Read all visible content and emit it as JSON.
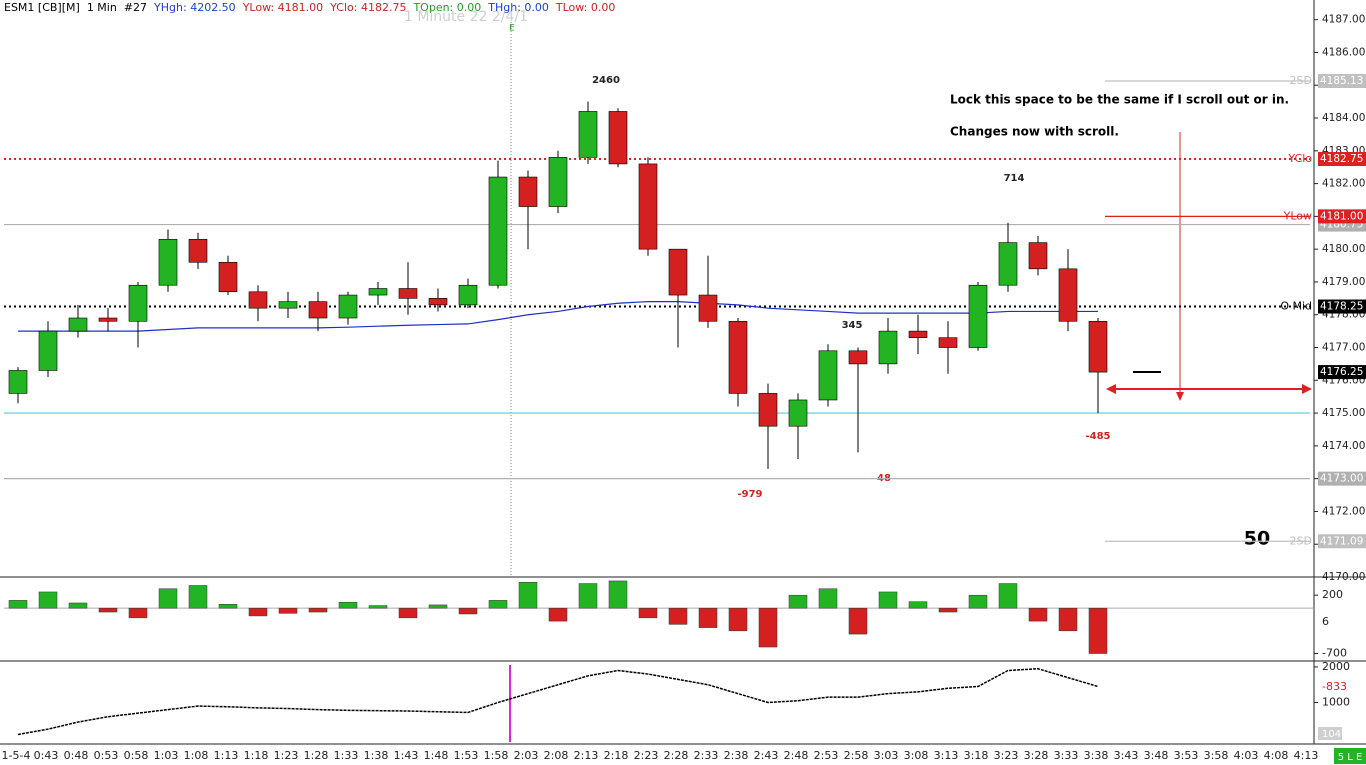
{
  "header": {
    "symbol": "ESM1 [CB][M]",
    "interval": "1 Min",
    "bar": "#27",
    "stats": [
      {
        "text": "YHgh: 4202.50",
        "color": "#1a3fd0"
      },
      {
        "text": "YLow: 4181.00",
        "color": "#d42020"
      },
      {
        "text": "YClo: 4182.75",
        "color": "#d42020"
      },
      {
        "text": "TOpen: 0.00",
        "color": "#22a022"
      },
      {
        "text": "THgh: 0.00",
        "color": "#1a3fd0"
      },
      {
        "text": "TLow: 0.00",
        "color": "#d42020"
      }
    ]
  },
  "status": "5 L E",
  "chart_data": [
    {
      "type": "candlestick",
      "watermark": "1 Minute 22 2/4/1",
      "marker": "E",
      "categories": [
        "1-5-4",
        "0:43",
        "0:48",
        "0:53",
        "0:58",
        "1:03",
        "1:08",
        "1:13",
        "1:18",
        "1:23",
        "1:28",
        "1:33",
        "1:38",
        "1:43",
        "1:48",
        "1:53",
        "1:58",
        "2:03",
        "2:08",
        "2:13",
        "2:18",
        "2:23",
        "2:28",
        "2:33",
        "2:38",
        "2:43",
        "2:48",
        "2:53",
        "2:58",
        "3:03",
        "3:08",
        "3:13",
        "3:18",
        "3:23",
        "3:28",
        "3:33",
        "3:38",
        "3:43",
        "3:48",
        "3:53",
        "3:58",
        "4:03",
        "4:08",
        "4:13"
      ],
      "open": [
        4175.6,
        4176.3,
        4177.5,
        4177.9,
        4177.8,
        4178.9,
        4180.3,
        4179.6,
        4178.7,
        4178.2,
        4178.4,
        4177.9,
        4178.6,
        4178.8,
        4178.5,
        4178.3,
        4178.9,
        4182.2,
        4181.3,
        4182.8,
        4184.2,
        4182.6,
        4180.0,
        4178.6,
        4177.8,
        4175.6,
        4174.6,
        4175.4,
        4176.9,
        4176.5,
        4177.5,
        4177.3,
        4177.0,
        4178.9,
        4180.2,
        4179.4,
        4177.8,
        null,
        null,
        null,
        null,
        null,
        null,
        null
      ],
      "high": [
        4176.4,
        4177.8,
        4178.3,
        4178.2,
        4179.0,
        4180.6,
        4180.5,
        4179.8,
        4178.9,
        4178.7,
        4178.7,
        4178.7,
        4179.0,
        4179.6,
        4178.8,
        4179.1,
        4182.7,
        4182.4,
        4183.0,
        4184.5,
        4184.3,
        4182.8,
        4180.0,
        4179.8,
        4177.9,
        4175.9,
        4175.6,
        4177.1,
        4177.0,
        4177.9,
        4178.0,
        4177.8,
        4179.0,
        4180.8,
        4180.4,
        4180.0,
        4177.9,
        null,
        null,
        null,
        null,
        null,
        null,
        null
      ],
      "low": [
        4175.3,
        4176.1,
        4177.3,
        4177.5,
        4177.0,
        4178.7,
        4179.4,
        4178.6,
        4177.8,
        4177.9,
        4177.5,
        4177.7,
        4178.3,
        4178.0,
        4178.1,
        4178.2,
        4178.8,
        4180.0,
        4181.1,
        4182.6,
        4182.5,
        4179.8,
        4177.0,
        4177.6,
        4175.2,
        4173.3,
        4173.6,
        4175.2,
        4173.8,
        4176.2,
        4176.8,
        4176.2,
        4176.9,
        4178.7,
        4179.2,
        4177.5,
        4175.0,
        null,
        null,
        null,
        null,
        null,
        null,
        null
      ],
      "close": [
        4176.3,
        4177.5,
        4177.9,
        4177.8,
        4178.9,
        4180.3,
        4179.6,
        4178.7,
        4178.2,
        4178.4,
        4177.9,
        4178.6,
        4178.8,
        4178.5,
        4178.3,
        4178.9,
        4182.2,
        4181.3,
        4182.8,
        4184.2,
        4182.6,
        4180.0,
        4178.6,
        4177.8,
        4175.6,
        4174.6,
        4175.4,
        4176.9,
        4176.5,
        4177.5,
        4177.3,
        4177.0,
        4178.9,
        4180.2,
        4179.4,
        4177.8,
        4176.25,
        null,
        null,
        null,
        null,
        null,
        null,
        null
      ],
      "up_color": "#22b422",
      "down_color": "#d42020",
      "vwap": [
        4177.5,
        4177.5,
        4177.5,
        4177.5,
        4177.5,
        4177.55,
        4177.6,
        4177.6,
        4177.6,
        4177.6,
        4177.6,
        4177.62,
        4177.65,
        4177.68,
        4177.7,
        4177.72,
        4177.85,
        4178.0,
        4178.1,
        4178.25,
        4178.35,
        4178.4,
        4178.4,
        4178.35,
        4178.3,
        4178.2,
        4178.15,
        4178.1,
        4178.05,
        4178.05,
        4178.05,
        4178.05,
        4178.05,
        4178.1,
        4178.1,
        4178.1,
        4178.1,
        null,
        null,
        null,
        null,
        null,
        null,
        null
      ],
      "vwap_color": "#2030c0",
      "ylim": [
        4170,
        4187.6
      ],
      "yticks": [
        {
          "value": 4170,
          "label": "4170.00"
        },
        {
          "value": 4171,
          "label": "4171.00"
        },
        {
          "value": 4172,
          "label": "4172.00"
        },
        {
          "value": 4173,
          "label": "4173.00"
        },
        {
          "value": 4174,
          "label": "4174.00"
        },
        {
          "value": 4175,
          "label": "4175.00"
        },
        {
          "value": 4176,
          "label": "4176.00"
        },
        {
          "value": 4177,
          "label": "4177.00"
        },
        {
          "value": 4178,
          "label": "4178.00"
        },
        {
          "value": 4179,
          "label": "4179.00"
        },
        {
          "value": 4180,
          "label": "4180.00"
        },
        {
          "value": 4181,
          "label": "4181.00"
        },
        {
          "value": 4182,
          "label": "4182.00"
        },
        {
          "value": 4183,
          "label": "4183.00"
        },
        {
          "value": 4184,
          "label": "4184.00"
        },
        {
          "value": 4185,
          "label": "4185.00"
        },
        {
          "value": 4186,
          "label": "4186.00"
        },
        {
          "value": 4187,
          "label": "4187.00"
        }
      ],
      "levels": [
        {
          "name": "2SD",
          "value": 4185.13,
          "color": "#c0c0c0",
          "style": "solid",
          "span": "right"
        },
        {
          "name": "YClo",
          "value": 4182.75,
          "color": "#e02020",
          "style": "dotted",
          "span": "full"
        },
        {
          "value": 4180.75,
          "color": "#b0b0b0",
          "style": "solid",
          "span": "full"
        },
        {
          "name": "YLow",
          "value": 4181,
          "label": "4181.00",
          "color": "#e02020",
          "style": "solid",
          "span": "right"
        },
        {
          "name": "O Mid",
          "value": 4178.25,
          "color": "#000000",
          "style": "dotted",
          "span": "full"
        },
        {
          "value": 4176.25,
          "color": "#000000",
          "style": "none",
          "span": "full"
        },
        {
          "value": 4175,
          "color": "#4fd0e0",
          "style": "solid",
          "span": "full",
          "box": false
        },
        {
          "value": 4173,
          "label": "4173.00",
          "color": "#b0b0b0",
          "style": "solid",
          "span": "full"
        },
        {
          "name": "2SD",
          "value": 4171.09,
          "color": "#c0c0c0",
          "style": "solid",
          "span": "right"
        }
      ],
      "annotations": [
        2460,
        714,
        345,
        -979,
        48,
        -485,
        50
      ],
      "notes": [
        "Lock this space to be the same if I scroll out or in.",
        "Changes now with scroll."
      ]
    },
    {
      "type": "bar",
      "current": 6,
      "values": [
        120,
        250,
        80,
        -60,
        -150,
        300,
        350,
        60,
        -120,
        -80,
        -60,
        90,
        40,
        -150,
        50,
        -90,
        120,
        400,
        -200,
        380,
        420,
        -150,
        -250,
        -300,
        -350,
        -600,
        200,
        300,
        -400,
        250,
        100,
        -60,
        200,
        380,
        -200,
        -350,
        -700,
        null,
        null,
        null,
        null,
        null,
        null,
        null
      ],
      "up_color": "#22b422",
      "down_color": "#d42020",
      "ylim": [
        -800,
        450
      ],
      "yticks": [
        -700,
        200
      ]
    },
    {
      "type": "line",
      "current_label": "-833",
      "volume_label": "104",
      "values": [
        100,
        250,
        450,
        600,
        700,
        800,
        900,
        880,
        850,
        830,
        800,
        780,
        770,
        760,
        740,
        720,
        1000,
        1250,
        1500,
        1750,
        1900,
        1800,
        1650,
        1500,
        1250,
        1000,
        1050,
        1150,
        1150,
        1250,
        1300,
        1400,
        1450,
        1900,
        1950,
        1700,
        1450,
        null,
        null,
        null,
        null,
        null,
        null,
        null
      ],
      "color": "#000000",
      "ylim": [
        -111,
        2111
      ],
      "yticks": [
        1000,
        2000
      ]
    }
  ]
}
